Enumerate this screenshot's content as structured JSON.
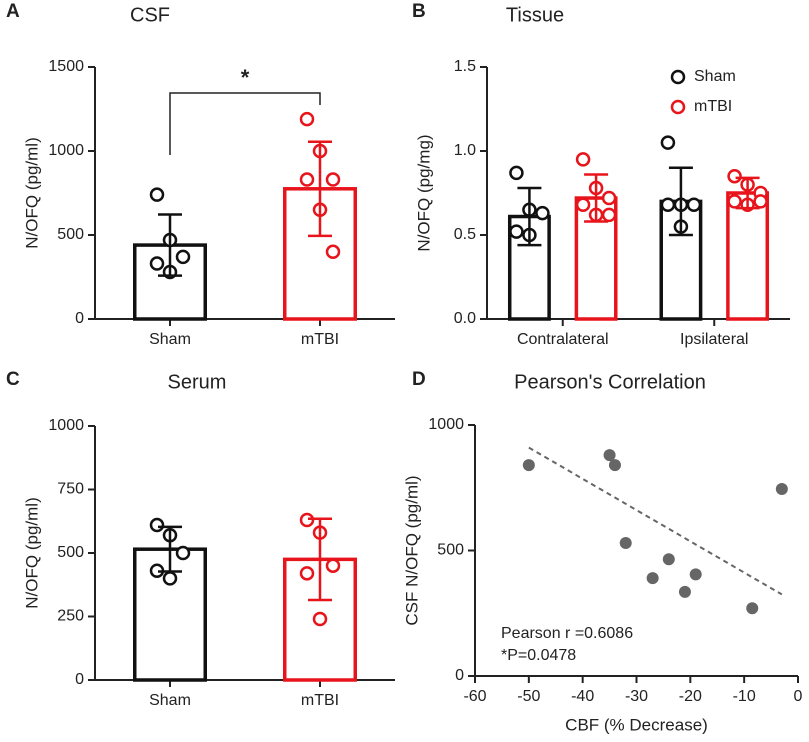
{
  "chart_data": [
    {
      "type": "bar",
      "panel": "A",
      "title": "CSF",
      "y_label": "N/OFQ (pg/ml)",
      "categories": [
        "Sham",
        "mTBI"
      ],
      "values": [
        440,
        775
      ],
      "errors": [
        182,
        280
      ],
      "colors": [
        "#111111",
        "#e8141b"
      ],
      "points": [
        [
          740,
          470,
          370,
          330,
          280
        ],
        [
          1190,
          1000,
          830,
          830,
          650,
          400
        ]
      ],
      "ylim": [
        0,
        1500
      ],
      "yticks": [
        0,
        500,
        1000,
        1500
      ],
      "significance": {
        "label": "*",
        "pair": [
          0,
          1
        ]
      }
    },
    {
      "type": "bar",
      "panel": "B",
      "title": "Tissue",
      "y_label": "N/OFQ (pg/mg)",
      "categories": [
        "Contralateral",
        "Ipsilateral"
      ],
      "series": [
        {
          "name": "Sham",
          "color": "#111111",
          "values": [
            0.61,
            0.7
          ],
          "errors": [
            0.17,
            0.2
          ],
          "points": [
            [
              0.87,
              0.65,
              0.63,
              0.52,
              0.5
            ],
            [
              1.05,
              0.68,
              0.68,
              0.68,
              0.55
            ]
          ]
        },
        {
          "name": "mTBI",
          "color": "#e8141b",
          "values": [
            0.72,
            0.75
          ],
          "errors": [
            0.14,
            0.09
          ],
          "points": [
            [
              0.95,
              0.78,
              0.72,
              0.68,
              0.62,
              0.62
            ],
            [
              0.85,
              0.8,
              0.75,
              0.7,
              0.68,
              0.7
            ]
          ]
        }
      ],
      "ylim": [
        0,
        1.5
      ],
      "yticks": [
        {
          "value": 0,
          "label": "0.0"
        },
        0.5,
        {
          "value": 1,
          "label": "1.0"
        },
        1.5
      ],
      "legend": "upper right"
    },
    {
      "type": "bar",
      "panel": "C",
      "title": "Serum",
      "y_label": "N/OFQ (pg/ml)",
      "categories": [
        "Sham",
        "mTBI"
      ],
      "values": [
        515,
        475
      ],
      "errors": [
        88,
        160
      ],
      "colors": [
        "#111111",
        "#e8141b"
      ],
      "points": [
        [
          610,
          570,
          500,
          430,
          400
        ],
        [
          630,
          580,
          450,
          420,
          240
        ]
      ],
      "ylim": [
        0,
        1000
      ],
      "yticks": [
        0,
        250,
        500,
        750,
        1000
      ]
    },
    {
      "type": "scatter",
      "panel": "D",
      "title": "Pearson's Correlation",
      "x_label": "CBF (% Decrease)",
      "y_label": "CSF N/OFQ (pg/ml)",
      "x": [
        -50,
        -35,
        -34,
        -32,
        -27,
        -24,
        -21,
        -19,
        -8.5,
        -3
      ],
      "values": [
        840,
        880,
        840,
        530,
        390,
        465,
        335,
        405,
        270,
        745
      ],
      "color": "#666666",
      "trendline": {
        "x": [
          -50,
          -3
        ],
        "y": [
          910,
          325
        ],
        "color": "#666666"
      },
      "annotations": [
        "Pearson r =0.6086",
        "*P=0.0478"
      ],
      "xlim": [
        -60,
        0
      ],
      "xticks": [
        -60,
        -50,
        -40,
        -30,
        -20,
        -10,
        0
      ],
      "ylim": [
        0,
        1000
      ],
      "yticks": [
        0,
        500,
        1000
      ]
    }
  ]
}
